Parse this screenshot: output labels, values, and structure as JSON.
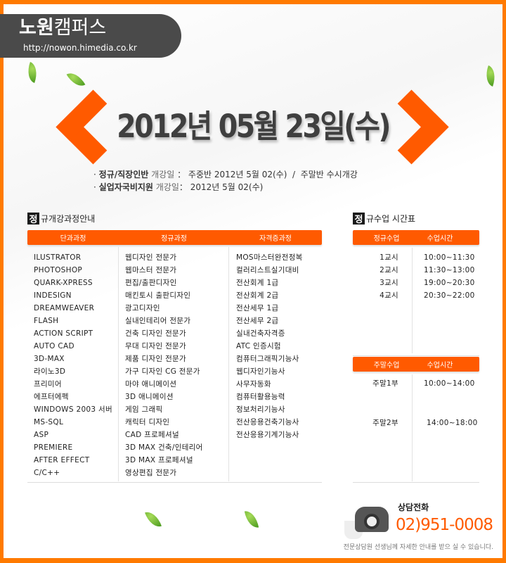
{
  "header": {
    "logo_bold": "노원",
    "logo_light": "캠퍼스",
    "url": "http://nowon.himedia.co.kr"
  },
  "title": "2012년 05월 23일(수)",
  "info": [
    {
      "bullet": "·",
      "label": "정규/직장인반",
      "suffix": "개강일",
      "sep": "：",
      "text": "주중반 2012년 5월 02(수)  /  주말반 수시개강"
    },
    {
      "bullet": "·",
      "label": "실업자국비지원",
      "suffix": "개강일",
      "sep": "：",
      "text": "2012년 5월 02(수)"
    }
  ],
  "courses": {
    "badge": "정",
    "title": "규개강과정안내",
    "headers": [
      "단과과정",
      "정규과정",
      "자격증과정"
    ],
    "short": [
      "ILUSTRATOR",
      "PHOTOSHOP",
      "QUARK-XPRESS",
      "INDESIGN",
      "DREAMWEAVER",
      "FLASH",
      "ACTION SCRIPT",
      "AUTO CAD",
      "3D-MAX",
      "라이노3D",
      "프리미어",
      "에프터에펙",
      "WINDOWS 2003 서버",
      "MS-SQL",
      "ASP",
      "PREMIERE",
      "AFTER EFFECT",
      "C/C++"
    ],
    "regular": [
      "웹디자인 전문가",
      "웹마스터 전문가",
      "편집/출판디자인",
      "매킨토시 출판디자인",
      "광고디자인",
      "실내인테리어 전문가",
      "건축 디자인 전문가",
      "무대 디자인 전문가",
      "제품 디자인 전문가",
      "가구 디자인 CG 전문가",
      "마야 애니메이션",
      "3D 애니메이션",
      "게임 그래픽",
      "캐릭터 디자인",
      "CAD 프로페셔널",
      "3D MAX 건축/인테리어",
      "3D MAX 프로페셔널",
      "영상편집 전문가"
    ],
    "cert": [
      "MOS마스터완전정복",
      "컬러리스트실기대비",
      "전산회계 1급",
      "전산회계 2급",
      "전산세무 1급",
      "전산세무 2급",
      "실내건축자격증",
      "ATC 인증시험",
      "컴퓨터그래픽기능사",
      "웹디자인기능사",
      "사무자동화",
      "컴퓨터활용능력",
      "정보처리기능사",
      "전산응용건축기능사",
      "전산응용기계기능사"
    ]
  },
  "schedule": {
    "badge": "정",
    "title": "규수업 시간표",
    "weekday_headers": [
      "정규수업",
      "수업시간"
    ],
    "weekday": [
      {
        "n": "1교시",
        "t": "10:00~11:30"
      },
      {
        "n": "2교시",
        "t": "11:30~13:00"
      },
      {
        "n": "3교시",
        "t": "19:00~20:30"
      },
      {
        "n": "4교시",
        "t": "20:30~22:00"
      }
    ],
    "weekend_headers": [
      "주말수업",
      "수업시간"
    ],
    "weekend": [
      {
        "n": "주말1부",
        "t": "10:00~14:00"
      },
      {
        "n": "주말2부",
        "t": "14:00~18:00"
      }
    ]
  },
  "contact": {
    "label": "상담전화",
    "phone": "02)951-0008",
    "note": "전문상담원 선생님께 자세한 안내를 받으 실 수 있습니다."
  },
  "colors": {
    "accent": "#ff5a00",
    "frame": "#ff7a00",
    "logo_bg": "#4a4a4a"
  }
}
